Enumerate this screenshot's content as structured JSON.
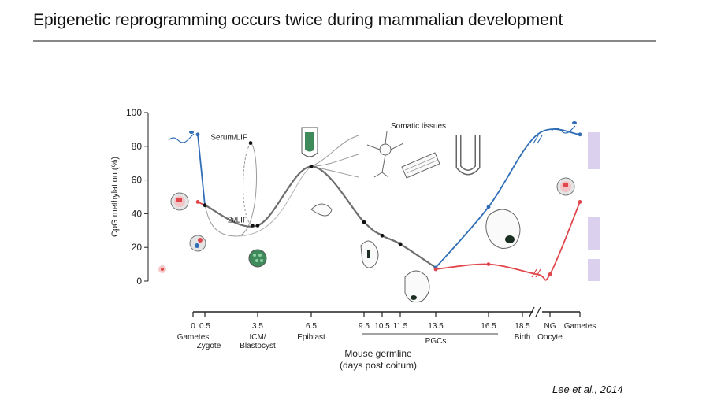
{
  "slide": {
    "title": "Epigenetic reprogramming occurs twice during mammalian development",
    "citation": "Lee et al., 2014"
  },
  "colors": {
    "paternal": "#2f6db5",
    "maternal": "#e0474c",
    "embryo": "#6e6e6e",
    "culture": "#9a9a9a",
    "highlight": "#dcd0ef"
  },
  "chart_data": {
    "type": "line",
    "title": "",
    "ylabel": "CpG methylation (%)",
    "xlabel": "Mouse germline",
    "xlabel2": "(days post coitum)",
    "ylim": [
      0,
      100
    ],
    "yticks": [
      0,
      20,
      40,
      60,
      80,
      100
    ],
    "xticks": [
      {
        "label": "0",
        "x": 0
      },
      {
        "label": "0.5",
        "x": 0.5
      },
      {
        "label": "3.5",
        "x": 3.5
      },
      {
        "label": "6.5",
        "x": 6.5
      },
      {
        "label": "9.5",
        "x": 9.5
      },
      {
        "label": "10.5",
        "x": 10.5
      },
      {
        "label": "11.5",
        "x": 11.5
      },
      {
        "label": "13.5",
        "x": 13.5
      },
      {
        "label": "16.5",
        "x": 16.5
      },
      {
        "label": "18.5",
        "x": 18.5
      },
      {
        "label": "NG",
        "x": 20
      },
      {
        "label": "Gametes",
        "x": 21.5
      }
    ],
    "stage_labels": [
      {
        "text": "Gametes",
        "x": 0
      },
      {
        "text": "Zygote",
        "x": 0.5
      },
      {
        "text": "ICM/",
        "x": 3.5
      },
      {
        "text": "Blastocyst",
        "x": 3.5
      },
      {
        "text": "Epiblast",
        "x": 6.5
      },
      {
        "text": "PGCs",
        "x": 13.5
      },
      {
        "text": "Birth",
        "x": 18.5
      },
      {
        "text": "Oocyte",
        "x": 20
      }
    ],
    "annotations": [
      {
        "text": "Serum/LIF",
        "x": 3.1,
        "y": 82
      },
      {
        "text": "2i/LIF",
        "x": 3.1,
        "y": 33
      },
      {
        "text": "Somatic tissues",
        "x": 11.3,
        "y": 91
      }
    ],
    "series": [
      {
        "key": "paternal",
        "color": "#2f6db5",
        "points": [
          [
            0.2,
            87
          ],
          [
            0.5,
            45
          ]
        ]
      },
      {
        "key": "maternal",
        "color": "#e0474c",
        "points": [
          [
            0.2,
            47
          ],
          [
            0.5,
            45
          ]
        ]
      },
      {
        "key": "embryo",
        "color": "#6e6e6e",
        "points": [
          [
            0.5,
            45
          ],
          [
            3.5,
            33
          ],
          [
            6.5,
            68
          ],
          [
            9.5,
            35
          ],
          [
            10.5,
            27
          ],
          [
            11.5,
            22
          ],
          [
            13.5,
            8
          ]
        ]
      },
      {
        "key": "paternal_germline",
        "color": "#2f6db5",
        "points": [
          [
            13.5,
            8
          ],
          [
            16.5,
            44
          ],
          [
            19.3,
            87
          ],
          [
            21.5,
            87
          ]
        ]
      },
      {
        "key": "maternal_germline",
        "color": "#e0474c",
        "points": [
          [
            13.5,
            7
          ],
          [
            16.5,
            10
          ],
          [
            19.3,
            4
          ],
          [
            20,
            4
          ],
          [
            21.5,
            47
          ]
        ]
      },
      {
        "key": "culture_serum",
        "color": "#9a9a9a",
        "points": [
          [
            3,
            82
          ],
          [
            3.2,
            33
          ]
        ]
      }
    ],
    "grid": false,
    "legend": "none"
  }
}
